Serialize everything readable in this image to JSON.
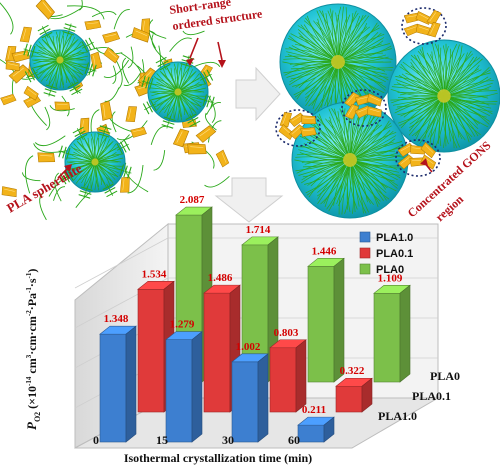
{
  "schematic": {
    "label_short_range": "Short-range ordered structure",
    "label_spherulite": "PLA spherulite",
    "label_gons": "Concentrated GONS region",
    "colors": {
      "sphere": "#22c4d6",
      "lamella": "#2aa81a",
      "gons": "#f2b31a",
      "callout": "#b5121b"
    }
  },
  "chart_data": {
    "type": "bar",
    "categories": [
      "0",
      "15",
      "30",
      "60"
    ],
    "xlabel": "Isothermal crystallization time (min)",
    "ylabel": "P_O2 (×10^-14 cm³·cm·cm⁻²·Pa⁻¹·s⁻¹)",
    "series": [
      {
        "name": "PLA1.0",
        "color": "#3d7fd0",
        "values": [
          1.348,
          1.279,
          1.002,
          0.211
        ]
      },
      {
        "name": "PLA0.1",
        "color": "#e03a3a",
        "values": [
          1.534,
          1.486,
          0.803,
          0.322
        ]
      },
      {
        "name": "PLA0",
        "color": "#7cc04a",
        "values": [
          2.087,
          1.714,
          1.446,
          1.109
        ]
      }
    ],
    "value_labels": {
      "PLA1.0": [
        "1.348",
        "1.279",
        "1.002",
        "0.211"
      ],
      "PLA0.1": [
        "1.534",
        "1.486",
        "0.803",
        "0.322"
      ],
      "PLA0": [
        "2.087",
        "1.714",
        "1.446",
        "1.109"
      ]
    },
    "depth_labels": [
      "PLA0",
      "PLA0.1",
      "PLA1.0"
    ],
    "legend_position": "top-right",
    "ylim": [
      0,
      2.2
    ]
  }
}
